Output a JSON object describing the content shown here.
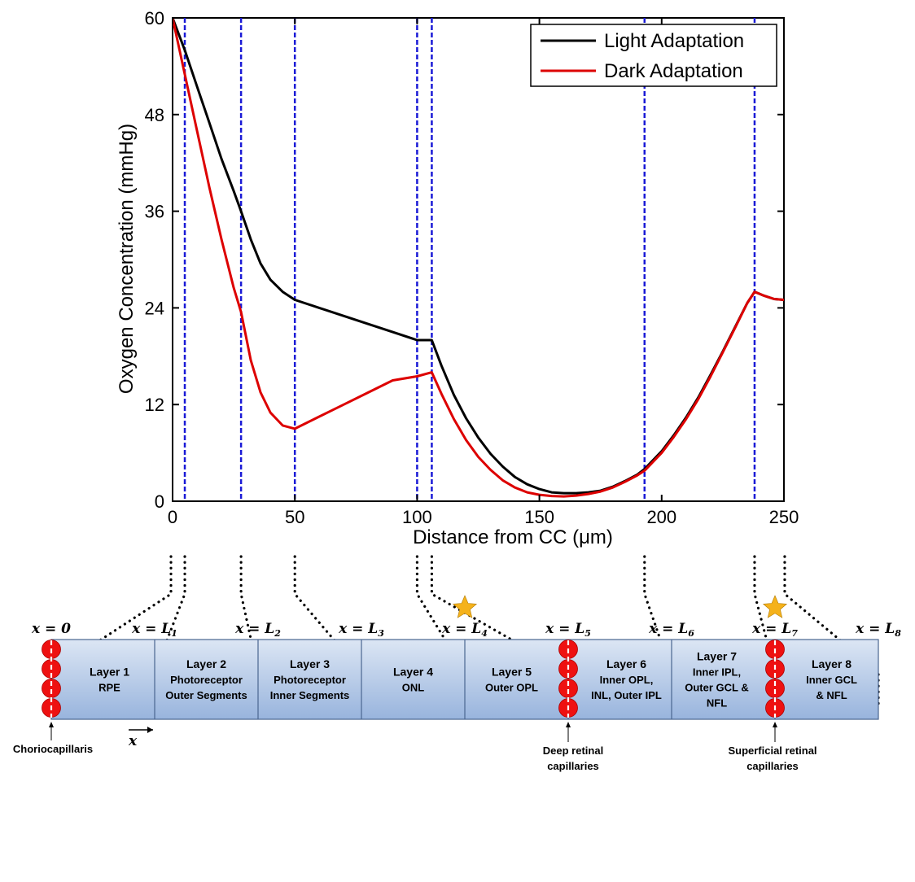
{
  "chart_data": {
    "type": "line",
    "xlabel": "Distance from CC (μm)",
    "ylabel": "Oxygen Concentration (mmHg)",
    "xlim": [
      0,
      250
    ],
    "ylim": [
      0,
      60
    ],
    "xticks": [
      "0",
      "50",
      "100",
      "150",
      "200",
      "250"
    ],
    "yticks": [
      "0",
      "12",
      "24",
      "36",
      "48",
      "60"
    ],
    "legend_position": "top-right",
    "boundaries": [
      5,
      28,
      50,
      100,
      106,
      193,
      238
    ],
    "series": [
      {
        "name": "Light Adaptation",
        "color": "#000000",
        "x": [
          0,
          5,
          10,
          15,
          20,
          25,
          28,
          32,
          36,
          40,
          45,
          50,
          60,
          70,
          80,
          90,
          100,
          106,
          110,
          115,
          120,
          125,
          130,
          135,
          140,
          145,
          150,
          155,
          160,
          165,
          170,
          175,
          180,
          185,
          190,
          193,
          200,
          205,
          210,
          215,
          220,
          225,
          230,
          235,
          238,
          242,
          246,
          250
        ],
        "y": [
          60,
          56,
          51.5,
          47,
          42.5,
          38.5,
          36,
          32.5,
          29.5,
          27.5,
          26,
          25,
          24,
          23,
          22,
          21,
          20,
          20,
          16.8,
          13.2,
          10.3,
          7.9,
          5.9,
          4.3,
          3.0,
          2.1,
          1.5,
          1.1,
          1.0,
          1.0,
          1.1,
          1.3,
          1.8,
          2.5,
          3.3,
          4.0,
          6.2,
          8.2,
          10.4,
          12.9,
          15.7,
          18.6,
          21.6,
          24.6,
          26,
          25.5,
          25.1,
          25
        ]
      },
      {
        "name": "Dark Adaptation",
        "color": "#dd0000",
        "x": [
          0,
          5,
          10,
          15,
          20,
          25,
          28,
          32,
          36,
          40,
          45,
          50,
          60,
          70,
          80,
          90,
          100,
          106,
          110,
          115,
          120,
          125,
          130,
          135,
          140,
          145,
          150,
          155,
          160,
          165,
          170,
          175,
          180,
          185,
          190,
          193,
          200,
          205,
          210,
          215,
          220,
          225,
          230,
          235,
          238,
          242,
          246,
          250
        ],
        "y": [
          60,
          53,
          46,
          39,
          32.5,
          26.5,
          23.5,
          17.5,
          13.5,
          11,
          9.4,
          9,
          10.5,
          12,
          13.5,
          15,
          15.5,
          16,
          13.3,
          10.2,
          7.6,
          5.5,
          3.9,
          2.6,
          1.7,
          1.1,
          0.8,
          0.65,
          0.6,
          0.7,
          0.9,
          1.2,
          1.7,
          2.4,
          3.2,
          3.8,
          6.0,
          8.0,
          10.2,
          12.7,
          15.5,
          18.5,
          21.5,
          24.6,
          26,
          25.5,
          25.1,
          25
        ]
      }
    ]
  },
  "diagram": {
    "positions": [
      {
        "main": "x = 0",
        "sub": ""
      },
      {
        "main": "x = L",
        "sub": "1"
      },
      {
        "main": "x = L",
        "sub": "2"
      },
      {
        "main": "x = L",
        "sub": "3"
      },
      {
        "main": "x = L",
        "sub": "4"
      },
      {
        "main": "x = L",
        "sub": "5"
      },
      {
        "main": "x = L",
        "sub": "6"
      },
      {
        "main": "x = L",
        "sub": "7"
      },
      {
        "main": "x = L",
        "sub": "8"
      }
    ],
    "layers": [
      {
        "lines": [
          "Layer 1",
          "RPE"
        ]
      },
      {
        "lines": [
          "Layer 2",
          "Photoreceptor",
          "Outer Segments"
        ]
      },
      {
        "lines": [
          "Layer 3",
          "Photoreceptor",
          "Inner Segments"
        ]
      },
      {
        "lines": [
          "Layer 4",
          "ONL"
        ]
      },
      {
        "lines": [
          "Layer 5",
          "Outer OPL"
        ]
      },
      {
        "lines": [
          "Layer 6",
          "Inner OPL,",
          "INL, Outer IPL"
        ]
      },
      {
        "lines": [
          "Layer 7",
          "Inner IPL,",
          "Outer GCL &",
          "NFL"
        ]
      },
      {
        "lines": [
          "Layer 8",
          "Inner GCL",
          "& NFL"
        ]
      }
    ],
    "axis_label": "x",
    "annotations": {
      "choriocapillaris": "Choriocapillaris",
      "deep": [
        "Deep retinal",
        "capillaries"
      ],
      "superficial": [
        "Superficial retinal",
        "capillaries"
      ]
    },
    "capillary_color": "#ee1111",
    "star_color": "#f5b21b",
    "band_color_top": "#dce6f4",
    "band_color_bottom": "#98b4dd"
  }
}
